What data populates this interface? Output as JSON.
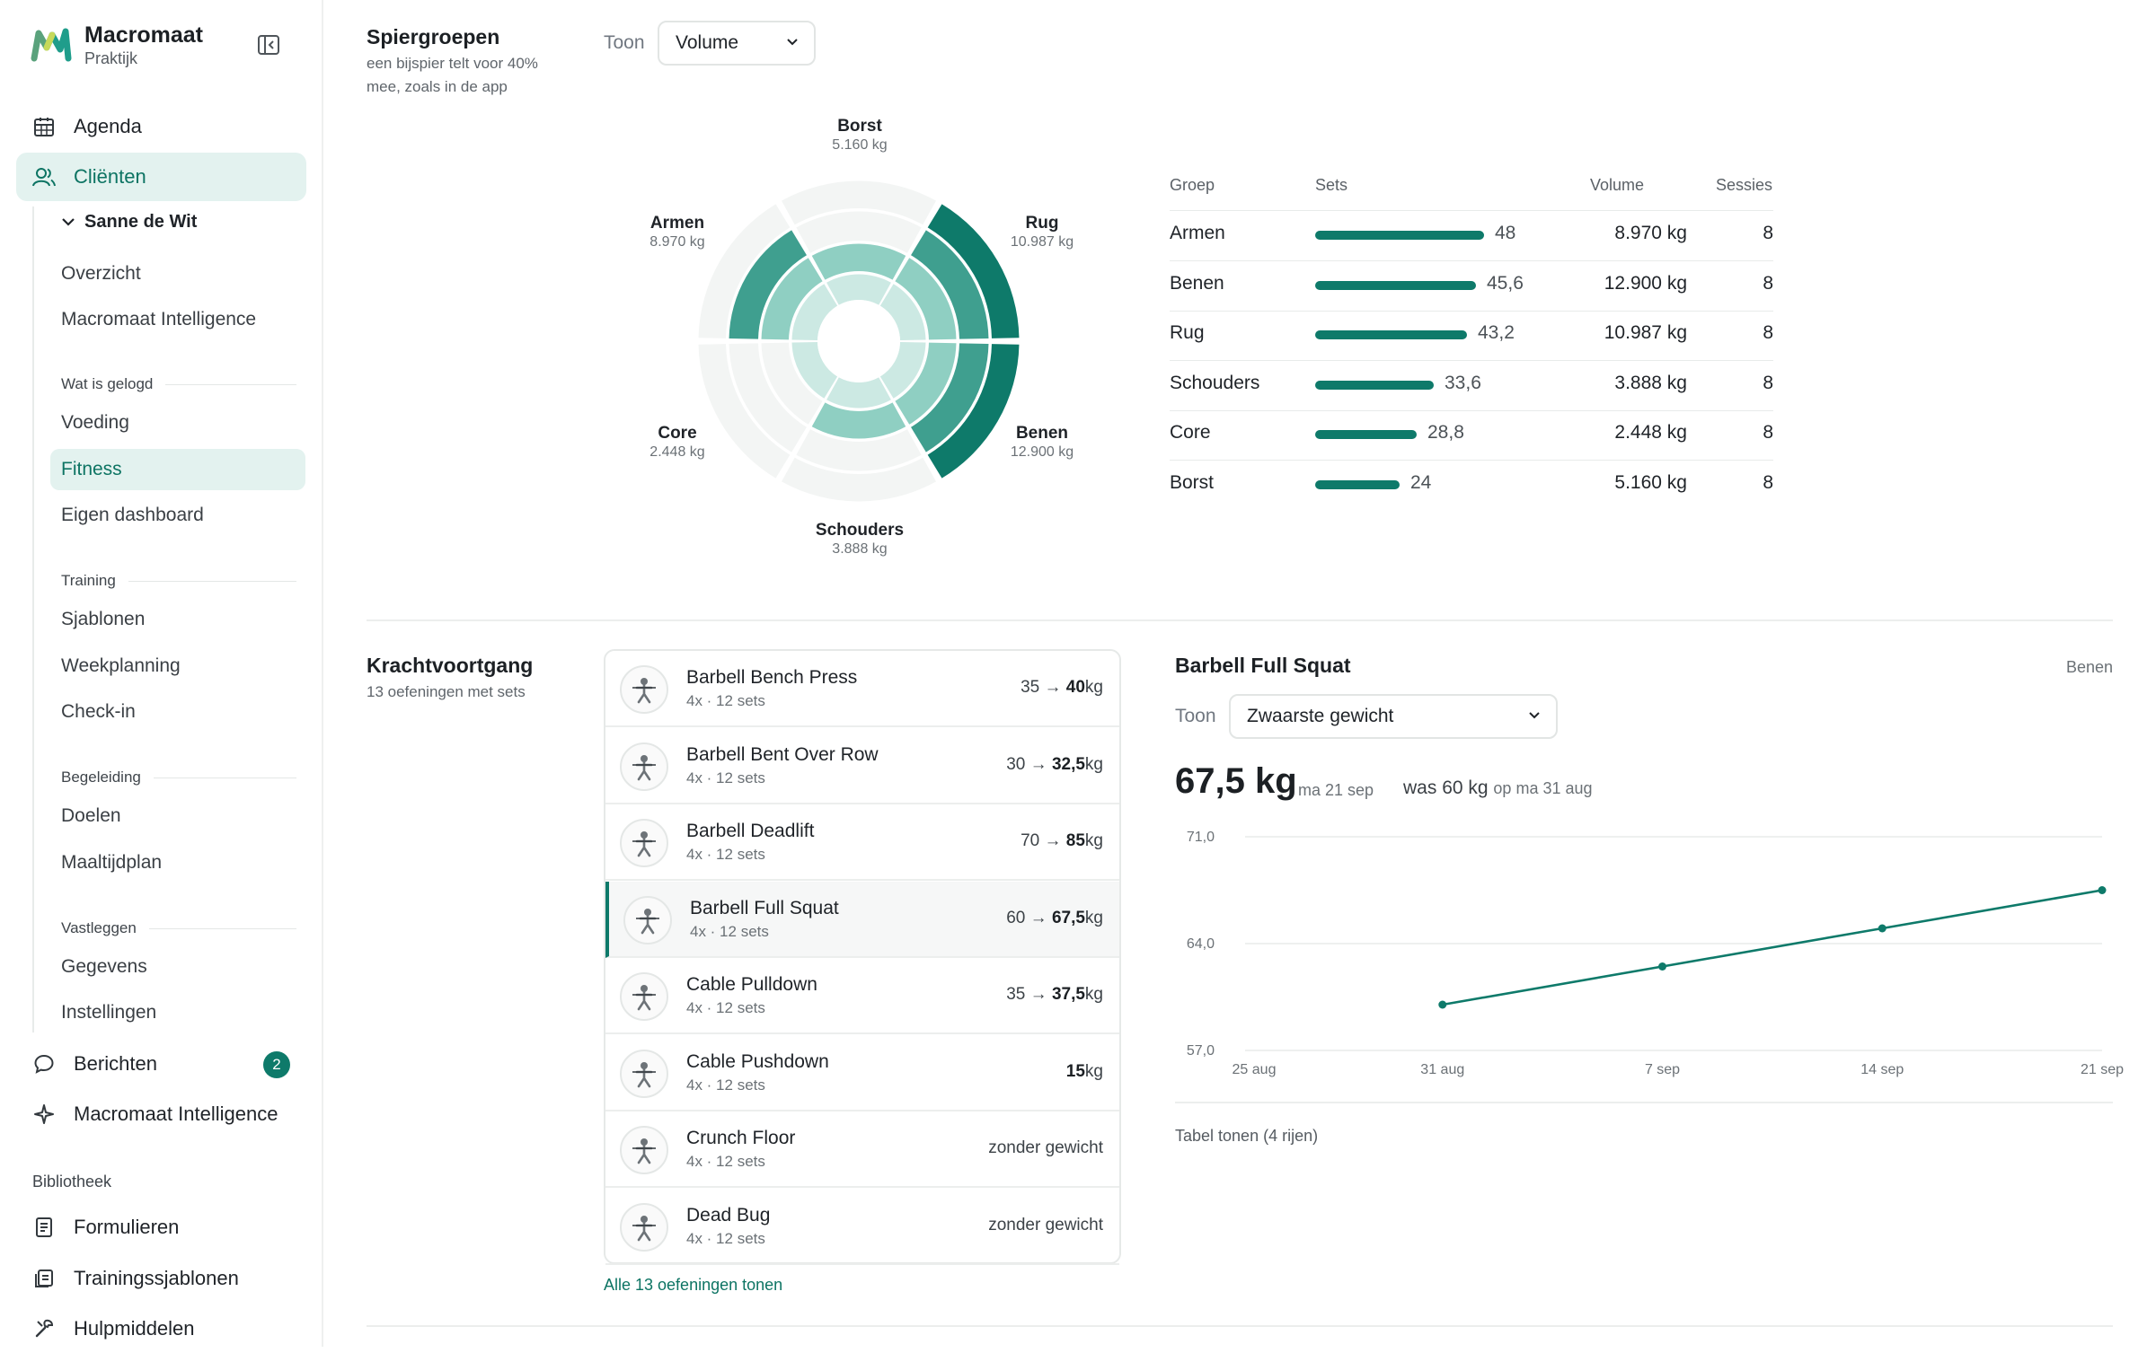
{
  "app": {
    "name": "Macromaat",
    "sub": "Praktijk"
  },
  "sidebar": {
    "agenda": "Agenda",
    "clienten": "Cliënten",
    "client_name": "Sanne de Wit",
    "items": {
      "overzicht": "Overzicht",
      "intelligence": "Macromaat Intelligence",
      "group_logged": "Wat is gelogd",
      "voeding": "Voeding",
      "fitness": "Fitness",
      "eigen_dashboard": "Eigen dashboard",
      "group_training": "Training",
      "sjablonen": "Sjablonen",
      "weekplanning": "Weekplanning",
      "checkin": "Check-in",
      "group_begeleiding": "Begeleiding",
      "doelen": "Doelen",
      "maaltijdplan": "Maaltijdplan",
      "group_vastleggen": "Vastleggen",
      "gegevens": "Gegevens",
      "instellingen": "Instellingen"
    },
    "berichten": "Berichten",
    "berichten_count": "2",
    "macromaat_intelligence": "Macromaat Intelligence",
    "bibliotheek": "Bibliotheek",
    "formulieren": "Formulieren",
    "trainingssjablonen": "Trainingssjablonen",
    "hulpmiddelen": "Hulpmiddelen"
  },
  "muscles": {
    "title": "Spiergroepen",
    "subtitle_line1": "een bijspier telt voor 40%",
    "subtitle_line2": "mee, zoals in de app",
    "toon_label": "Toon",
    "toon_value": "Volume",
    "radial": {
      "borst": {
        "name": "Borst",
        "value": "5.160 kg"
      },
      "rug": {
        "name": "Rug",
        "value": "10.987 kg"
      },
      "benen": {
        "name": "Benen",
        "value": "12.900 kg"
      },
      "schouders": {
        "name": "Schouders",
        "value": "3.888 kg"
      },
      "core": {
        "name": "Core",
        "value": "2.448 kg"
      },
      "armen": {
        "name": "Armen",
        "value": "8.970 kg"
      }
    },
    "table": {
      "headers": {
        "groep": "Groep",
        "sets": "Sets",
        "volume": "Volume",
        "sessies": "Sessies"
      },
      "rows": [
        {
          "groep": "Armen",
          "sets": "48",
          "sets_num": 48,
          "volume": "8.970 kg",
          "sessies": "8"
        },
        {
          "groep": "Benen",
          "sets": "45,6",
          "sets_num": 45.6,
          "volume": "12.900 kg",
          "sessies": "8"
        },
        {
          "groep": "Rug",
          "sets": "43,2",
          "sets_num": 43.2,
          "volume": "10.987 kg",
          "sessies": "8"
        },
        {
          "groep": "Schouders",
          "sets": "33,6",
          "sets_num": 33.6,
          "volume": "3.888 kg",
          "sessies": "8"
        },
        {
          "groep": "Core",
          "sets": "28,8",
          "sets_num": 28.8,
          "volume": "2.448 kg",
          "sessies": "8"
        },
        {
          "groep": "Borst",
          "sets": "24",
          "sets_num": 24,
          "volume": "5.160 kg",
          "sessies": "8"
        }
      ]
    }
  },
  "strength": {
    "title": "Krachtvoortgang",
    "subtitle": "13 oefeningen met sets",
    "exercises": [
      {
        "name": "Barbell Bench Press",
        "meta": "4x · 12 sets",
        "from": "35",
        "arrow": "→",
        "to": "40",
        "unit": "kg"
      },
      {
        "name": "Barbell Bent Over Row",
        "meta": "4x · 12 sets",
        "from": "30",
        "arrow": "→",
        "to": "32,5",
        "unit": "kg"
      },
      {
        "name": "Barbell Deadlift",
        "meta": "4x · 12 sets",
        "from": "70",
        "arrow": "→",
        "to": "85",
        "unit": "kg"
      },
      {
        "name": "Barbell Full Squat",
        "meta": "4x · 12 sets",
        "from": "60",
        "arrow": "→",
        "to": "67,5",
        "unit": "kg"
      },
      {
        "name": "Cable Pulldown",
        "meta": "4x · 12 sets",
        "from": "35",
        "arrow": "→",
        "to": "37,5",
        "unit": "kg"
      },
      {
        "name": "Cable Pushdown",
        "meta": "4x · 12 sets",
        "from": "",
        "arrow": "",
        "to": "15",
        "unit": "kg"
      },
      {
        "name": "Crunch Floor",
        "meta": "4x · 12 sets",
        "plain": "zonder gewicht"
      },
      {
        "name": "Dead Bug",
        "meta": "4x · 12 sets",
        "plain": "zonder gewicht"
      }
    ],
    "show_all": "Alle 13 oefeningen tonen",
    "detail": {
      "title": "Barbell Full Squat",
      "group": "Benen",
      "toon_label": "Toon",
      "toon_value": "Zwaarste gewicht",
      "current": "67,5 kg",
      "current_date": "ma 21 sep",
      "was_prefix": "was",
      "was_value": "60 kg",
      "was_date": "op ma 31 aug",
      "table_toggle": "Tabel tonen (4 rijen)"
    }
  },
  "chart_data": {
    "type": "line",
    "x": [
      "31 aug",
      "7 sep",
      "14 sep",
      "21 sep"
    ],
    "x_ticks": [
      "25 aug",
      "31 aug",
      "7 sep",
      "14 sep",
      "21 sep"
    ],
    "x_tick_days": [
      0,
      6,
      13,
      20,
      27
    ],
    "x_days": [
      6,
      13,
      20,
      27
    ],
    "y": [
      60,
      62.5,
      65,
      67.5
    ],
    "y_ticks": [
      "57,0",
      "64,0",
      "71,0"
    ],
    "y_tick_values": [
      57,
      64,
      71
    ],
    "ylim": [
      57,
      71
    ],
    "color": "#0e7a6a",
    "grid": true
  },
  "colors": {
    "accent": "#0e7a6a",
    "accent_light": "#e3f2ef"
  }
}
